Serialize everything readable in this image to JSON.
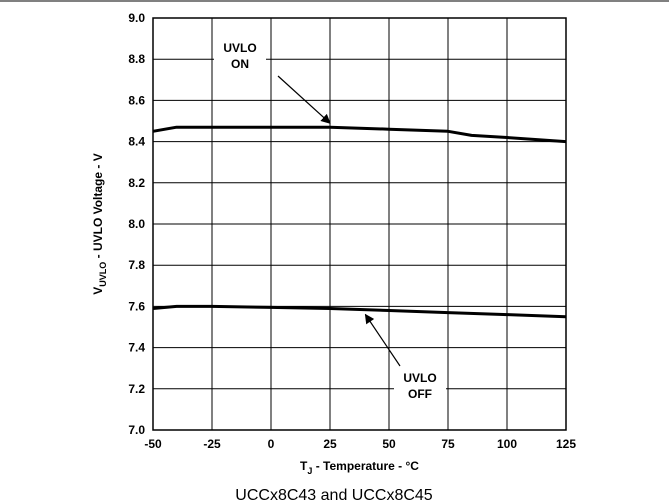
{
  "chart_data": {
    "type": "line",
    "title": "",
    "xlabel": {
      "main": "T",
      "sub": "J",
      "rest": " - Temperature - °C"
    },
    "ylabel": {
      "main": "V",
      "sub": "UVLO",
      "rest": " - UVLO Voltage - V"
    },
    "xlim": [
      -50,
      125
    ],
    "ylim": [
      7.0,
      9.0
    ],
    "xticks": [
      -50,
      -25,
      0,
      25,
      50,
      75,
      100,
      125
    ],
    "yticks": [
      7.0,
      7.2,
      7.4,
      7.6,
      7.8,
      8.0,
      8.2,
      8.4,
      8.6,
      8.8,
      9.0
    ],
    "grid": true,
    "series": [
      {
        "name": "UVLO ON",
        "x": [
          -50,
          -40,
          -25,
          0,
          25,
          50,
          75,
          85,
          100,
          125
        ],
        "y": [
          8.45,
          8.47,
          8.47,
          8.47,
          8.47,
          8.46,
          8.45,
          8.43,
          8.42,
          8.4
        ]
      },
      {
        "name": "UVLO OFF",
        "x": [
          -50,
          -40,
          -25,
          0,
          25,
          50,
          75,
          100,
          125
        ],
        "y": [
          7.59,
          7.6,
          7.6,
          7.595,
          7.59,
          7.58,
          7.57,
          7.56,
          7.55
        ]
      }
    ],
    "annotations": [
      {
        "lines": [
          "UVLO",
          "ON"
        ],
        "target": [
          25,
          8.47
        ]
      },
      {
        "lines": [
          "UVLO",
          "OFF"
        ],
        "target": [
          40,
          7.58
        ]
      }
    ]
  },
  "caption": "UCCx8C43 and UCCx8C45"
}
